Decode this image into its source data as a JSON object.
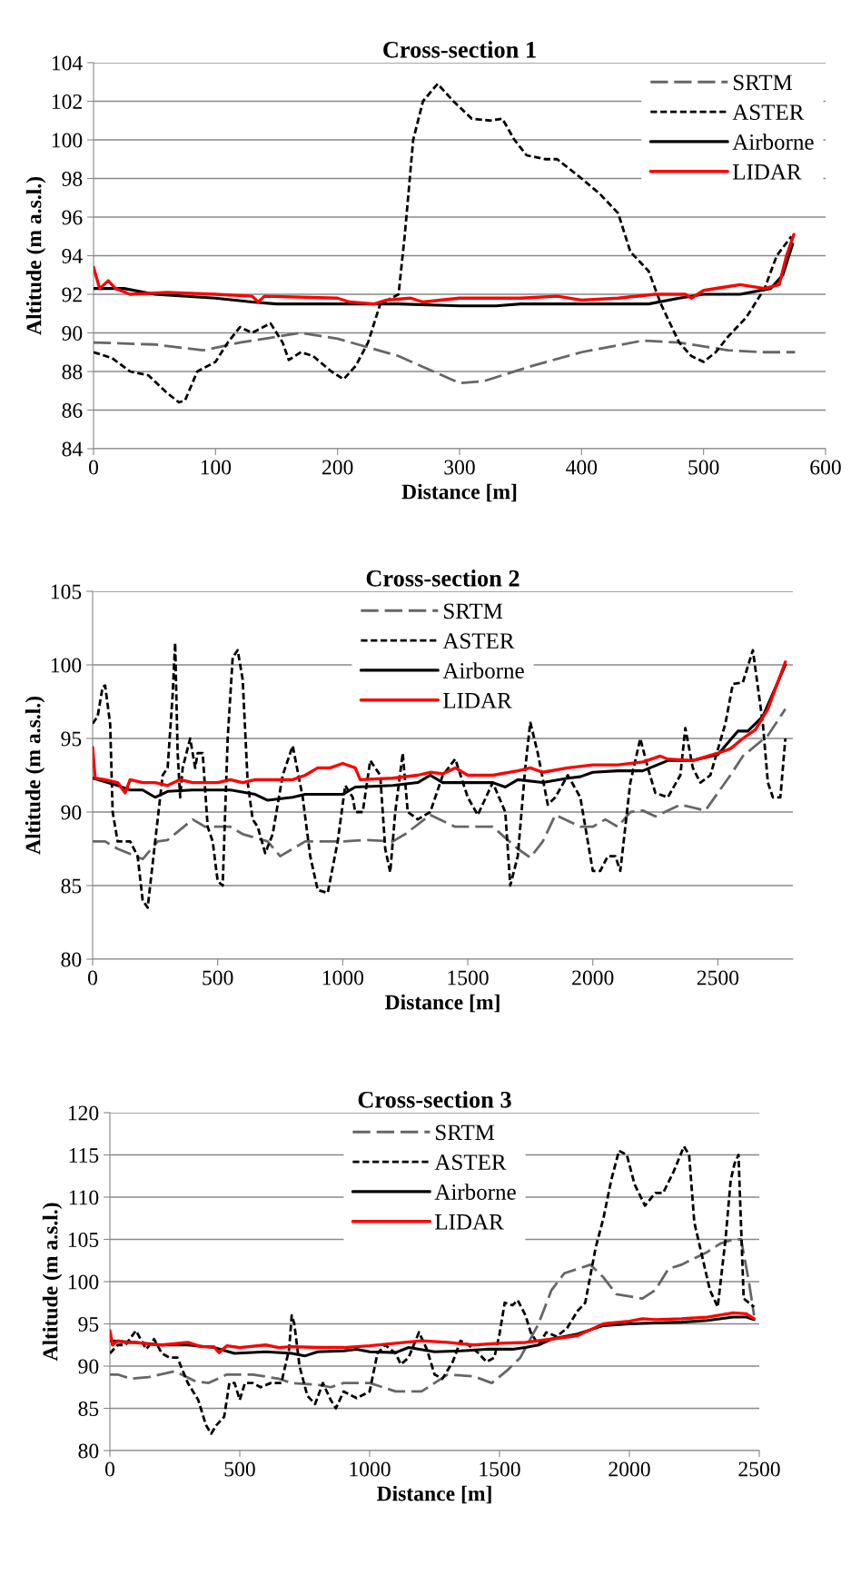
{
  "chart_data": [
    {
      "type": "line",
      "title": "Cross-section 1",
      "xlabel": "Distance [m]",
      "ylabel": "Altitude (m a.s.l.)",
      "xlim": [
        0,
        600
      ],
      "xticks": [
        0,
        100,
        200,
        300,
        400,
        500,
        600
      ],
      "ylim": [
        84,
        104
      ],
      "yticks": [
        84,
        86,
        88,
        90,
        92,
        94,
        96,
        98,
        100,
        102,
        104
      ],
      "grid": "y",
      "legend": "top right",
      "marker": "none",
      "series": [
        {
          "name": "SRTM",
          "color": "#666666",
          "line_style": "dashed",
          "x": [
            0,
            50,
            90,
            120,
            170,
            200,
            250,
            300,
            320,
            360,
            400,
            450,
            480,
            520,
            550,
            575
          ],
          "values": [
            89.5,
            89.4,
            89.1,
            89.5,
            90.0,
            89.7,
            88.8,
            87.4,
            87.5,
            88.3,
            89.0,
            89.6,
            89.5,
            89.1,
            89.0,
            89.0
          ]
        },
        {
          "name": "ASTER",
          "color": "#000000",
          "line_style": "dotted",
          "x": [
            0,
            15,
            30,
            45,
            60,
            70,
            75,
            85,
            100,
            110,
            120,
            130,
            145,
            155,
            160,
            170,
            180,
            195,
            205,
            215,
            225,
            235,
            250,
            255,
            262,
            270,
            282,
            295,
            310,
            325,
            335,
            345,
            355,
            370,
            380,
            400,
            415,
            430,
            440,
            455,
            465,
            480,
            490,
            500,
            510,
            520,
            535,
            550,
            560,
            572
          ],
          "values": [
            89,
            88.7,
            88,
            87.8,
            86.9,
            86.4,
            86.5,
            88,
            88.5,
            89.5,
            90.3,
            90,
            90.5,
            89.5,
            88.6,
            89,
            88.8,
            88,
            87.6,
            88.3,
            89.5,
            91.5,
            92,
            95,
            100,
            102,
            102.9,
            102,
            101.1,
            101,
            101.1,
            100,
            99.2,
            99,
            99,
            98,
            97.2,
            96.2,
            94.2,
            93.2,
            91.5,
            89.5,
            88.8,
            88.5,
            89,
            89.8,
            90.8,
            92.3,
            94,
            95
          ]
        },
        {
          "name": "Airborne",
          "color": "#000000",
          "line_style": "solid",
          "x": [
            0,
            25,
            50,
            100,
            130,
            150,
            250,
            300,
            330,
            350,
            455,
            480,
            500,
            530,
            555,
            565,
            573
          ],
          "values": [
            92.3,
            92.3,
            92,
            91.8,
            91.6,
            91.5,
            91.5,
            91.4,
            91.4,
            91.5,
            91.5,
            91.8,
            92,
            92,
            92.3,
            93,
            94.6
          ]
        },
        {
          "name": "LIDAR",
          "color": "#ff0000",
          "line_style": "solid",
          "x": [
            0,
            5,
            12,
            18,
            30,
            60,
            100,
            130,
            135,
            140,
            200,
            210,
            230,
            240,
            260,
            270,
            300,
            350,
            380,
            400,
            430,
            460,
            485,
            490,
            500,
            520,
            530,
            550,
            562,
            568,
            574
          ],
          "values": [
            93.4,
            92.3,
            92.7,
            92.3,
            92.0,
            92.1,
            92.0,
            91.9,
            91.6,
            91.9,
            91.8,
            91.6,
            91.5,
            91.7,
            91.8,
            91.6,
            91.8,
            91.8,
            91.9,
            91.7,
            91.8,
            92.0,
            92.0,
            91.8,
            92.2,
            92.4,
            92.5,
            92.3,
            92.5,
            94,
            95.1
          ]
        }
      ]
    },
    {
      "type": "line",
      "title": "Cross-section 2",
      "xlabel": "Distance [m]",
      "ylabel": "Altitude (m a.s.l.)",
      "xlim": [
        0,
        2800
      ],
      "xticks": [
        0,
        500,
        1000,
        1500,
        2000,
        2500
      ],
      "ylim": [
        80,
        105
      ],
      "yticks": [
        80,
        85,
        90,
        95,
        100,
        105
      ],
      "grid": "y",
      "legend": "top",
      "marker": "none",
      "series": [
        {
          "name": "SRTM",
          "color": "#666666",
          "line_style": "dashed",
          "x": [
            0,
            50,
            100,
            200,
            260,
            300,
            400,
            450,
            550,
            600,
            700,
            750,
            800,
            850,
            1000,
            1100,
            1200,
            1250,
            1350,
            1450,
            1600,
            1700,
            1750,
            1800,
            1850,
            1950,
            2000,
            2050,
            2100,
            2150,
            2200,
            2250,
            2350,
            2450,
            2550,
            2600,
            2700,
            2770
          ],
          "values": [
            88,
            88,
            87.5,
            86.8,
            88,
            88.1,
            89.5,
            89,
            89,
            88.5,
            88,
            87,
            87.5,
            88,
            88,
            88.1,
            88,
            88.5,
            89.8,
            89,
            89,
            87.5,
            86.9,
            88,
            89.8,
            89,
            89,
            89.5,
            89,
            90,
            90.1,
            89.7,
            90.5,
            90.1,
            92.5,
            93.8,
            95.2,
            97
          ]
        },
        {
          "name": "ASTER",
          "color": "#000000",
          "line_style": "dotted",
          "x": [
            0,
            20,
            40,
            50,
            70,
            80,
            100,
            150,
            180,
            200,
            220,
            250,
            280,
            300,
            320,
            330,
            340,
            350,
            360,
            390,
            410,
            420,
            440,
            460,
            480,
            500,
            520,
            540,
            560,
            580,
            600,
            620,
            640,
            660,
            690,
            720,
            760,
            800,
            840,
            870,
            900,
            940,
            980,
            1010,
            1040,
            1050,
            1080,
            1110,
            1150,
            1170,
            1190,
            1210,
            1240,
            1260,
            1300,
            1350,
            1400,
            1450,
            1500,
            1540,
            1600,
            1650,
            1670,
            1700,
            1730,
            1750,
            1780,
            1820,
            1850,
            1900,
            1950,
            1980,
            2000,
            2030,
            2060,
            2090,
            2110,
            2150,
            2190,
            2220,
            2250,
            2300,
            2350,
            2370,
            2400,
            2430,
            2470,
            2530,
            2560,
            2600,
            2640,
            2680,
            2700,
            2720,
            2750,
            2770
          ],
          "values": [
            96,
            96.5,
            98.5,
            98.6,
            96,
            90,
            88,
            88,
            87,
            84,
            83.5,
            88,
            92.5,
            93,
            98,
            101.5,
            94,
            91,
            93,
            95,
            93,
            94,
            94,
            89,
            88,
            85.3,
            85,
            95,
            100.5,
            101,
            99,
            92,
            89.5,
            89,
            87.2,
            88.5,
            92.5,
            94.5,
            91,
            87,
            84.7,
            84.5,
            88,
            91.8,
            91,
            90,
            90,
            93.5,
            92.5,
            87.5,
            85.9,
            90,
            94,
            90,
            89.5,
            90,
            92.5,
            93.6,
            91,
            89.8,
            92,
            90,
            85,
            87,
            93,
            96.1,
            94,
            90.5,
            91,
            92.5,
            91,
            88,
            86,
            86,
            87,
            87,
            86,
            92,
            95,
            93,
            91.3,
            91,
            92.5,
            95.7,
            93,
            92,
            92.5,
            96,
            98.7,
            98.8,
            101,
            96,
            92,
            91,
            91,
            95
          ]
        },
        {
          "name": "Airborne",
          "color": "#000000",
          "line_style": "solid",
          "x": [
            0,
            100,
            150,
            200,
            250,
            300,
            400,
            550,
            650,
            700,
            800,
            850,
            1000,
            1050,
            1200,
            1300,
            1350,
            1400,
            1600,
            1650,
            1700,
            1800,
            1900,
            1950,
            2000,
            2100,
            2200,
            2300,
            2400,
            2500,
            2580,
            2620,
            2680,
            2770
          ],
          "values": [
            92.3,
            91.8,
            91.5,
            91.5,
            91,
            91.4,
            91.5,
            91.5,
            91.2,
            90.8,
            91,
            91.2,
            91.2,
            91.7,
            91.8,
            92,
            92.5,
            92,
            92,
            91.7,
            92.2,
            92,
            92.3,
            92.4,
            92.7,
            92.8,
            92.8,
            93.5,
            93.5,
            93.9,
            95.5,
            95.5,
            96.5,
            100
          ]
        },
        {
          "name": "LIDAR",
          "color": "#ff0000",
          "line_style": "solid",
          "x": [
            0,
            10,
            50,
            100,
            130,
            150,
            200,
            250,
            300,
            350,
            400,
            450,
            500,
            550,
            600,
            650,
            700,
            800,
            850,
            900,
            950,
            1000,
            1050,
            1070,
            1200,
            1300,
            1350,
            1400,
            1450,
            1500,
            1600,
            1700,
            1750,
            1800,
            1900,
            2000,
            2100,
            2200,
            2270,
            2300,
            2400,
            2500,
            2550,
            2600,
            2650,
            2700,
            2770
          ],
          "values": [
            94.4,
            92.3,
            92.2,
            92,
            91.3,
            92.2,
            92,
            92,
            91.8,
            92.2,
            92,
            92,
            92,
            92.2,
            92,
            92.2,
            92.2,
            92.2,
            92.5,
            93,
            93,
            93.3,
            93,
            92.2,
            92.3,
            92.5,
            92.7,
            92.6,
            93,
            92.5,
            92.5,
            92.8,
            93,
            92.7,
            93,
            93.2,
            93.2,
            93.4,
            93.8,
            93.6,
            93.5,
            94,
            94.3,
            95,
            95.6,
            97,
            100.2
          ]
        }
      ]
    },
    {
      "type": "line",
      "title": "Cross-section 3",
      "xlabel": "Distance [m]",
      "ylabel": "Altitude (m a.s.l.)",
      "xlim": [
        0,
        2500
      ],
      "xticks": [
        0,
        500,
        1000,
        1500,
        2000,
        2500
      ],
      "ylim": [
        80,
        120
      ],
      "yticks": [
        80,
        85,
        90,
        95,
        100,
        105,
        110,
        115,
        120
      ],
      "grid": "y",
      "legend": "top",
      "marker": "none",
      "series": [
        {
          "name": "SRTM",
          "color": "#666666",
          "line_style": "dashed",
          "x": [
            0,
            30,
            80,
            150,
            250,
            330,
            380,
            450,
            550,
            650,
            700,
            800,
            850,
            900,
            1000,
            1050,
            1100,
            1200,
            1300,
            1400,
            1470,
            1530,
            1580,
            1650,
            1700,
            1750,
            1800,
            1850,
            1900,
            1950,
            2050,
            2100,
            2150,
            2200,
            2300,
            2350,
            2400,
            2430,
            2460,
            2480
          ],
          "values": [
            89,
            89,
            88.5,
            88.7,
            89.4,
            88.2,
            88,
            89,
            89,
            88.5,
            88,
            87.8,
            87.5,
            88,
            88,
            87.5,
            87,
            87,
            89,
            88.8,
            88,
            89.5,
            91,
            95,
            99,
            101,
            101.5,
            102,
            100.5,
            98.5,
            98,
            99,
            101.5,
            102,
            103.5,
            104.5,
            105,
            105,
            100,
            96
          ]
        },
        {
          "name": "ASTER",
          "color": "#000000",
          "line_style": "dotted",
          "x": [
            0,
            30,
            60,
            100,
            140,
            170,
            200,
            230,
            260,
            300,
            340,
            370,
            390,
            410,
            440,
            460,
            480,
            500,
            520,
            550,
            580,
            620,
            660,
            690,
            700,
            710,
            730,
            760,
            790,
            820,
            850,
            870,
            900,
            950,
            1000,
            1030,
            1060,
            1100,
            1120,
            1150,
            1190,
            1220,
            1250,
            1280,
            1320,
            1350,
            1380,
            1420,
            1450,
            1480,
            1500,
            1520,
            1550,
            1570,
            1600,
            1620,
            1650,
            1680,
            1720,
            1760,
            1800,
            1830,
            1870,
            1900,
            1930,
            1960,
            1990,
            2020,
            2060,
            2100,
            2130,
            2170,
            2210,
            2230,
            2250,
            2280,
            2310,
            2340,
            2370,
            2390,
            2405,
            2420,
            2440,
            2480
          ],
          "values": [
            91.5,
            92.5,
            92.5,
            94.2,
            92,
            93.2,
            91.5,
            91,
            91,
            88,
            86,
            83,
            82,
            83,
            84,
            88,
            88,
            86,
            88,
            88,
            87.5,
            88,
            88,
            92,
            96,
            95,
            90,
            86.5,
            85.5,
            88,
            86,
            85,
            87,
            86.2,
            87,
            91.5,
            92.5,
            91.5,
            90.2,
            91,
            94,
            92,
            89,
            88.5,
            90.5,
            93,
            92.5,
            91.5,
            90.5,
            91,
            93.8,
            97.5,
            97.2,
            97.8,
            96,
            94,
            92.5,
            94,
            93.5,
            94.5,
            96.5,
            97.5,
            104,
            107.5,
            112,
            115.5,
            115,
            111.5,
            109,
            110.5,
            110.5,
            113,
            116,
            115,
            107,
            103,
            99,
            97,
            105,
            112,
            114,
            115,
            98,
            97
          ]
        },
        {
          "name": "Airborne",
          "color": "#000000",
          "line_style": "solid",
          "x": [
            0,
            100,
            200,
            300,
            400,
            480,
            600,
            700,
            750,
            800,
            900,
            950,
            1000,
            1100,
            1150,
            1250,
            1350,
            1450,
            1550,
            1600,
            1650,
            1700,
            1800,
            1900,
            2000,
            2100,
            2200,
            2300,
            2400,
            2450,
            2480
          ],
          "values": [
            93,
            92.8,
            92.5,
            92.5,
            92.2,
            91.5,
            91.7,
            91.5,
            91.2,
            91.7,
            91.8,
            92,
            91.7,
            91.6,
            92.2,
            91.7,
            91.8,
            92,
            92,
            92.2,
            92.5,
            93.2,
            93.8,
            94.8,
            95,
            95.1,
            95.2,
            95.4,
            95.8,
            95.8,
            95.5
          ]
        },
        {
          "name": "LIDAR",
          "color": "#ff0000",
          "line_style": "solid",
          "x": [
            0,
            10,
            30,
            60,
            100,
            150,
            200,
            300,
            350,
            400,
            420,
            450,
            500,
            600,
            650,
            700,
            800,
            900,
            1000,
            1100,
            1200,
            1300,
            1400,
            1500,
            1600,
            1700,
            1800,
            1900,
            2000,
            2050,
            2100,
            2200,
            2300,
            2400,
            2450,
            2480
          ],
          "values": [
            94.2,
            92.5,
            93,
            92.8,
            92.8,
            92.6,
            92.5,
            92.8,
            92.3,
            92.3,
            91.6,
            92.4,
            92.2,
            92.5,
            92.2,
            92.3,
            92.2,
            92.2,
            92.4,
            92.7,
            93,
            92.8,
            92.5,
            92.7,
            92.8,
            93.2,
            93.6,
            95,
            95.3,
            95.6,
            95.5,
            95.6,
            95.8,
            96.3,
            96.2,
            95.6
          ]
        }
      ]
    }
  ]
}
